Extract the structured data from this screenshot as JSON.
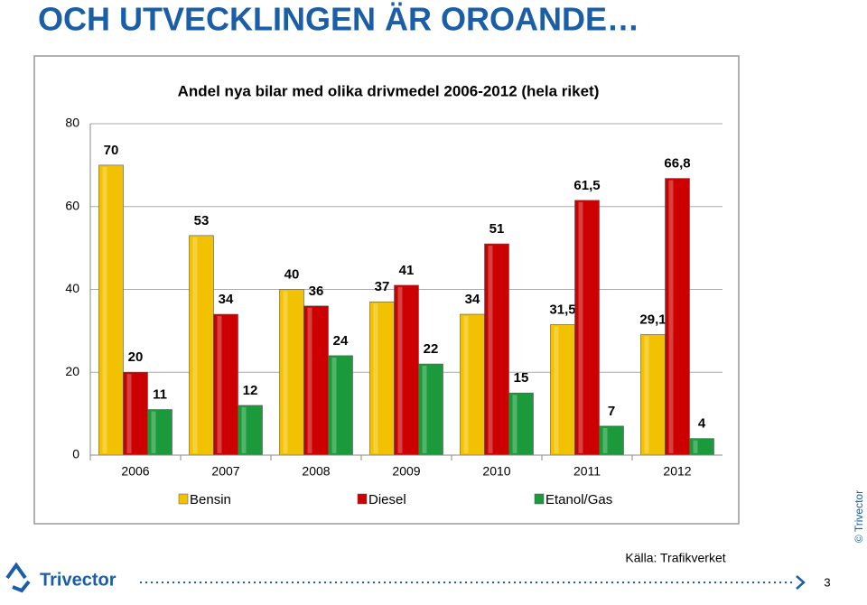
{
  "slide": {
    "title": "OCH UTVECKLINGEN ÄR OROANDE…",
    "source": "Källa: Trafikverket",
    "copyright": "© Trivector",
    "logo": "Trivector",
    "page_number": "3"
  },
  "chart_data": {
    "type": "bar",
    "title": "Andel nya bilar med olika drivmedel 2006-2012 (hela riket)",
    "categories": [
      "2006",
      "2007",
      "2008",
      "2009",
      "2010",
      "2011",
      "2012"
    ],
    "series": [
      {
        "name": "Bensin",
        "color": "#f2c200",
        "values": [
          70,
          53,
          40,
          37,
          34,
          31.5,
          29.1
        ],
        "value_labels": [
          "70",
          "53",
          "40",
          "37",
          "34",
          "31,5",
          "29,1"
        ]
      },
      {
        "name": "Diesel",
        "color": "#cc0000",
        "values": [
          20,
          34,
          36,
          41,
          51,
          61.5,
          66.8
        ],
        "value_labels": [
          "20",
          "34",
          "36",
          "41",
          "51",
          "61,5",
          "66,8"
        ]
      },
      {
        "name": "Etanol/Gas",
        "color": "#1a9a3a",
        "values": [
          11,
          12,
          24,
          22,
          15,
          7,
          4
        ],
        "value_labels": [
          "11",
          "12",
          "24",
          "22",
          "15",
          "7",
          "4"
        ]
      }
    ],
    "ylim": [
      0,
      80
    ],
    "yticks": [
      0,
      20,
      40,
      60,
      80
    ],
    "grid": true
  }
}
